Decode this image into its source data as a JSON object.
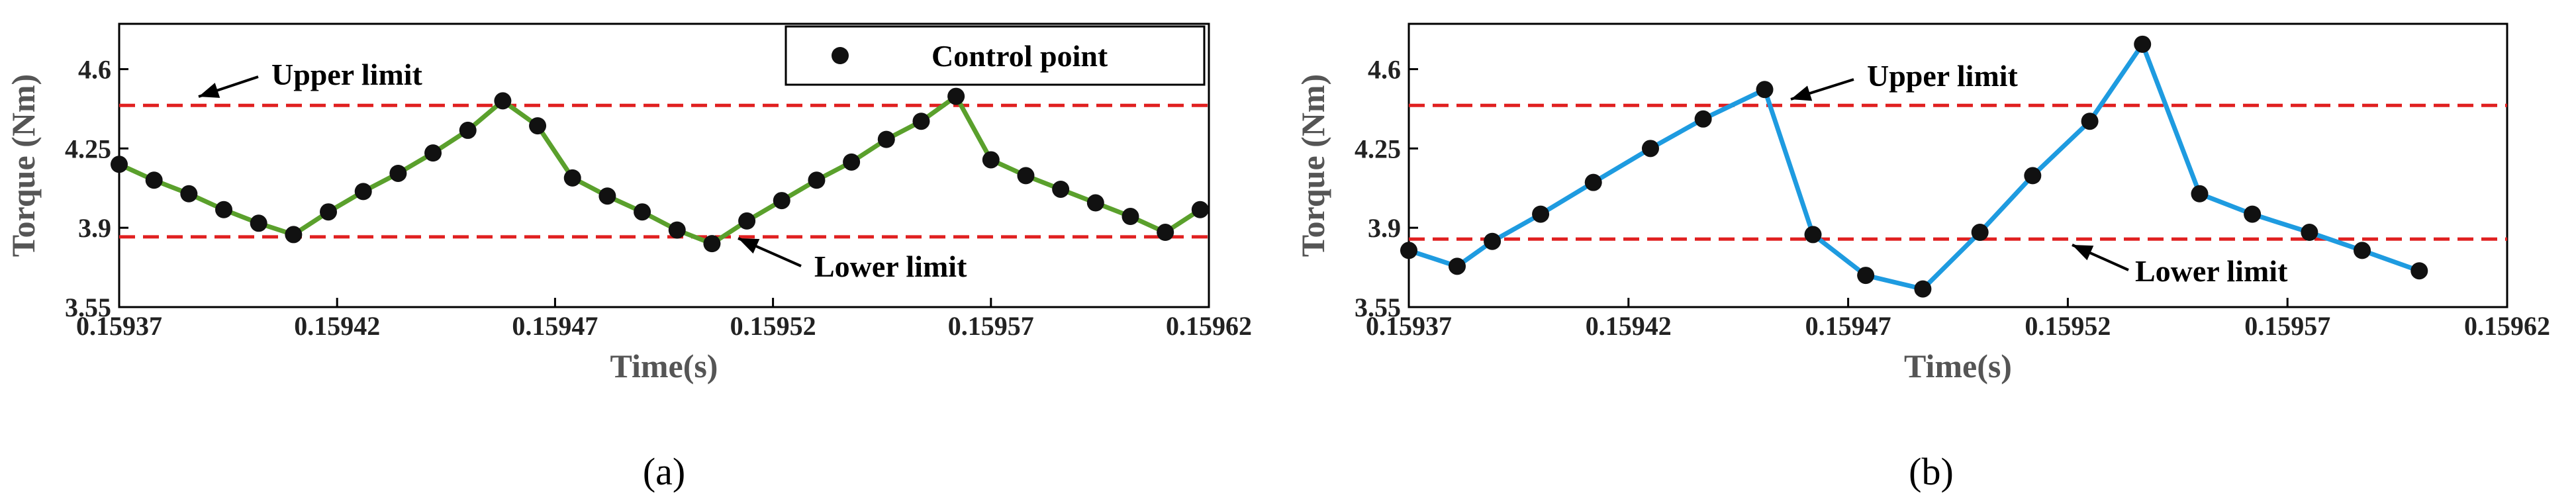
{
  "chart_data": [
    {
      "type": "line",
      "panel_label": "(a)",
      "xlabel": "Time(s)",
      "ylabel": "Torque (Nm)",
      "xlim": [
        0.15937,
        0.15962
      ],
      "ylim": [
        3.55,
        4.8
      ],
      "xticks": [
        "0.15937",
        "0.15942",
        "0.15947",
        "0.15952",
        "0.15957",
        "0.15962"
      ],
      "yticks": [
        "3.55",
        "3.9",
        "4.25",
        "4.6"
      ],
      "grid": false,
      "line_color": "#5aa02c",
      "series": [
        {
          "name": "Control point",
          "x": [
            0.15937,
            0.159378,
            0.159386,
            0.159394,
            0.159402,
            0.15941,
            0.159418,
            0.159426,
            0.159434,
            0.159442,
            0.15945,
            0.159458,
            0.159466,
            0.159474,
            0.159482,
            0.15949,
            0.159498,
            0.159506,
            0.159514,
            0.159522,
            0.15953,
            0.159538,
            0.159546,
            0.159554,
            0.159562,
            0.15957,
            0.159578,
            0.159586,
            0.159594,
            0.159602,
            0.15961,
            0.159618
          ],
          "y": [
            4.18,
            4.11,
            4.05,
            3.98,
            3.92,
            3.87,
            3.97,
            4.06,
            4.14,
            4.23,
            4.33,
            4.46,
            4.35,
            4.12,
            4.04,
            3.97,
            3.89,
            3.83,
            3.93,
            4.02,
            4.11,
            4.19,
            4.29,
            4.37,
            4.48,
            4.2,
            4.13,
            4.07,
            4.01,
            3.95,
            3.88,
            3.98
          ]
        }
      ],
      "reference_lines": [
        {
          "label": "Upper limit",
          "y": 4.44,
          "color": "#e02020"
        },
        {
          "label": "Lower limit",
          "y": 3.86,
          "color": "#e02020"
        }
      ],
      "legend": {
        "position": "top-right",
        "entries": [
          "Control point"
        ]
      }
    },
    {
      "type": "line",
      "panel_label": "(b)",
      "xlabel": "Time(s)",
      "ylabel": "Torque (Nm)",
      "xlim": [
        0.15937,
        0.15962
      ],
      "ylim": [
        3.55,
        4.8
      ],
      "xticks": [
        "0.15937",
        "0.15942",
        "0.15947",
        "0.15952",
        "0.15957",
        "0.15962"
      ],
      "yticks": [
        "3.55",
        "3.9",
        "4.25",
        "4.6"
      ],
      "grid": false,
      "line_color": "#1e9be0",
      "series": [
        {
          "x": [
            0.15937,
            0.159381,
            0.159389,
            0.1594,
            0.159412,
            0.159425,
            0.159437,
            0.159451,
            0.159462,
            0.159474,
            0.159487,
            0.1595,
            0.159512,
            0.159525,
            0.159537,
            0.15955,
            0.159562,
            0.159575,
            0.159587,
            0.1596
          ],
          "y": [
            3.8,
            3.73,
            3.84,
            3.96,
            4.1,
            4.25,
            4.38,
            4.51,
            3.87,
            3.69,
            3.63,
            3.88,
            4.13,
            4.37,
            4.71,
            4.05,
            3.96,
            3.88,
            3.8,
            3.71
          ]
        }
      ],
      "reference_lines": [
        {
          "label": "Upper limit",
          "y": 4.44,
          "color": "#e02020"
        },
        {
          "label": "Lower limit",
          "y": 3.85,
          "color": "#e02020"
        }
      ]
    }
  ]
}
